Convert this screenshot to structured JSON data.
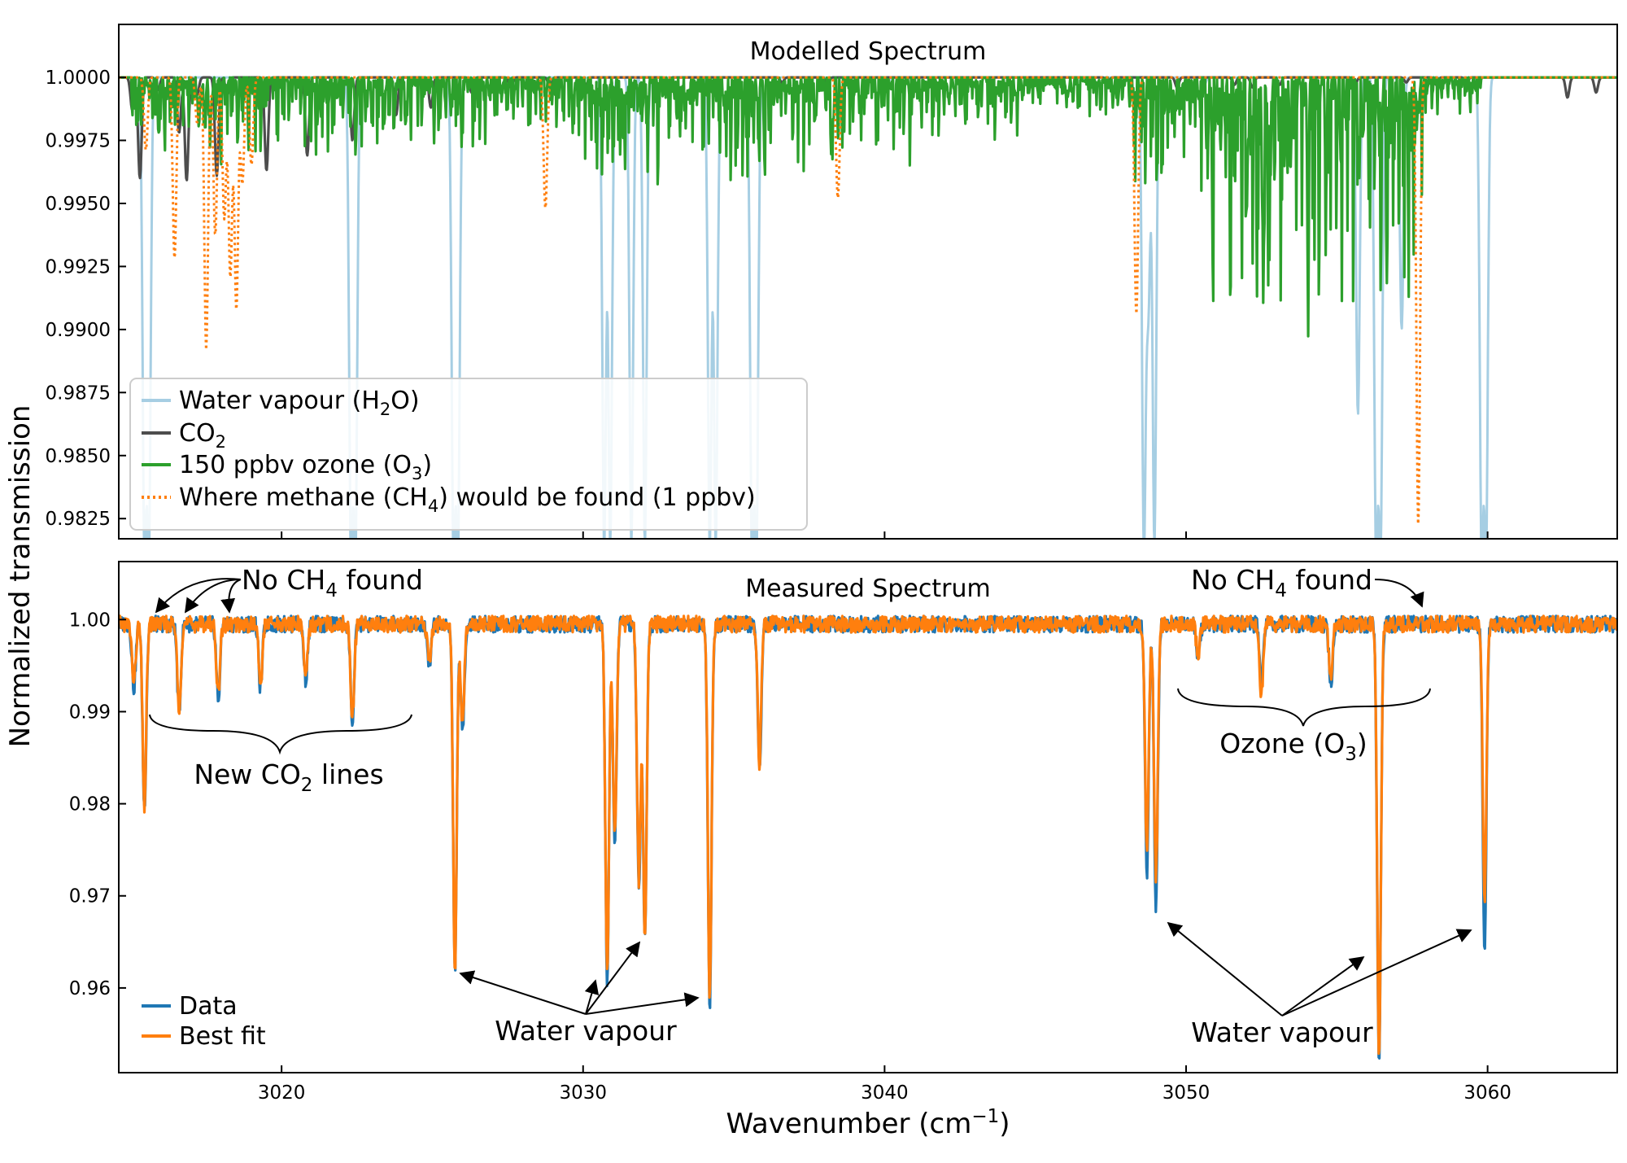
{
  "figure": {
    "ylabel": "Normalized transmission",
    "xlabel": "Wavenumber (cm⁻¹)",
    "xlabel_main": "Wavenumber (cm",
    "xlabel_sup": "−1",
    "xlabel_close": ")"
  },
  "top_panel": {
    "title": "Modelled Spectrum",
    "legend": [
      {
        "name": "Water vapour (H₂O)",
        "parts": [
          "Water vapour (H",
          "2",
          "O)"
        ],
        "color": "#a6cee3",
        "style": "solid"
      },
      {
        "name": "CO₂",
        "parts": [
          "CO",
          "2",
          ""
        ],
        "color": "#4d4d4d",
        "style": "solid"
      },
      {
        "name": "150 ppbv ozone (O₃)",
        "parts": [
          "150 ppbv ozone (O",
          "3",
          ")"
        ],
        "color": "#2ca02c",
        "style": "solid"
      },
      {
        "name": "Where methane (CH₄) would be found (1 ppbv)",
        "parts": [
          "Where methane (CH",
          "4",
          ") would be found (1 ppbv)"
        ],
        "color": "#ff7f0e",
        "style": "dotted"
      }
    ]
  },
  "bottom_panel": {
    "title": "Measured Spectrum",
    "legend": [
      {
        "name": "Data",
        "color": "#1f77b4"
      },
      {
        "name": "Best fit",
        "color": "#ff7f0e"
      }
    ],
    "annotations": {
      "no_ch4_left": {
        "parts": [
          "No CH",
          "4",
          " found"
        ]
      },
      "no_ch4_right": {
        "parts": [
          "No CH",
          "4",
          " found"
        ]
      },
      "new_co2": {
        "parts": [
          "New CO",
          "2",
          " lines"
        ]
      },
      "ozone": {
        "parts": [
          "Ozone (O",
          "3",
          ")"
        ]
      },
      "water_left": "Water vapour",
      "water_right": "Water vapour"
    }
  },
  "chart_data": [
    {
      "type": "line",
      "title": "Modelled Spectrum",
      "xlabel": "",
      "ylabel": "Normalized transmission",
      "xlim": [
        3014.6,
        3064.3
      ],
      "ylim": [
        0.9817,
        1.0021
      ],
      "yticks": [
        0.9825,
        0.985,
        0.9875,
        0.99,
        0.9925,
        0.995,
        0.9975,
        1.0
      ],
      "ytick_labels": [
        "0.9825",
        "0.9850",
        "0.9875",
        "0.9900",
        "0.9925",
        "0.9950",
        "0.9975",
        "1.0000"
      ],
      "xticks": [
        3020,
        3030,
        3040,
        3050,
        3060
      ],
      "grid": false,
      "legend_position": "lower-left",
      "series": [
        {
          "name": "Water vapour (H₂O)",
          "color": "#a6cee3",
          "baseline": 1.0,
          "absorption_lines": [
            {
              "x": 3015.45,
              "y": 0.9815
            },
            {
              "x": 3015.6,
              "y": 0.9815
            },
            {
              "x": 3022.3,
              "y": 0.9815
            },
            {
              "x": 3022.45,
              "y": 0.9815
            },
            {
              "x": 3025.7,
              "y": 0.9815
            },
            {
              "x": 3025.85,
              "y": 0.9815
            },
            {
              "x": 3030.7,
              "y": 0.9815
            },
            {
              "x": 3030.9,
              "y": 0.9815
            },
            {
              "x": 3031.6,
              "y": 0.9815
            },
            {
              "x": 3032.05,
              "y": 0.9815
            },
            {
              "x": 3034.2,
              "y": 0.9815
            },
            {
              "x": 3034.4,
              "y": 0.9815
            },
            {
              "x": 3035.6,
              "y": 0.9815
            },
            {
              "x": 3035.75,
              "y": 0.9815
            },
            {
              "x": 3048.6,
              "y": 0.9815
            },
            {
              "x": 3048.75,
              "y": 0.9911
            },
            {
              "x": 3048.95,
              "y": 0.9815
            },
            {
              "x": 3055.7,
              "y": 0.9866
            },
            {
              "x": 3056.3,
              "y": 0.9815
            },
            {
              "x": 3056.45,
              "y": 0.9815
            },
            {
              "x": 3057.15,
              "y": 0.99
            },
            {
              "x": 3059.8,
              "y": 0.9815
            },
            {
              "x": 3059.95,
              "y": 0.9815
            },
            {
              "x": 3040.1,
              "y": 0.9998
            },
            {
              "x": 3050.6,
              "y": 0.9997
            }
          ]
        },
        {
          "name": "CO₂",
          "color": "#4d4d4d",
          "baseline": 1.0,
          "absorption_lines": [
            {
              "x": 3015.05,
              "y": 0.9987
            },
            {
              "x": 3015.3,
              "y": 0.996
            },
            {
              "x": 3015.9,
              "y": 0.9995
            },
            {
              "x": 3016.6,
              "y": 0.9978
            },
            {
              "x": 3016.85,
              "y": 0.9959
            },
            {
              "x": 3017.2,
              "y": 0.9993
            },
            {
              "x": 3017.85,
              "y": 0.9961
            },
            {
              "x": 3018.2,
              "y": 0.9993
            },
            {
              "x": 3019.5,
              "y": 0.9963
            },
            {
              "x": 3020.85,
              "y": 0.9969
            },
            {
              "x": 3022.35,
              "y": 0.9975
            },
            {
              "x": 3023.8,
              "y": 0.9985
            },
            {
              "x": 3024.95,
              "y": 0.9988
            },
            {
              "x": 3026.3,
              "y": 0.9994
            },
            {
              "x": 3027.6,
              "y": 0.9996
            },
            {
              "x": 3028.9,
              "y": 0.9996
            },
            {
              "x": 3030.1,
              "y": 0.9997
            },
            {
              "x": 3032.8,
              "y": 0.9998
            },
            {
              "x": 3036.6,
              "y": 0.9998
            },
            {
              "x": 3038.1,
              "y": 0.9997
            },
            {
              "x": 3047.4,
              "y": 0.9998
            },
            {
              "x": 3049.7,
              "y": 0.9996
            },
            {
              "x": 3051.6,
              "y": 0.9997
            },
            {
              "x": 3052.2,
              "y": 0.9996
            },
            {
              "x": 3053.1,
              "y": 0.9997
            },
            {
              "x": 3055.6,
              "y": 0.9997
            },
            {
              "x": 3057.3,
              "y": 0.9998
            },
            {
              "x": 3058.3,
              "y": 0.9997
            },
            {
              "x": 3059.3,
              "y": 0.9998
            },
            {
              "x": 3062.65,
              "y": 0.9992
            },
            {
              "x": 3063.6,
              "y": 0.9994
            }
          ]
        },
        {
          "name": "150 ppbv ozone (O₃)",
          "color": "#2ca02c",
          "baseline": 1.0,
          "absorption_bands": [
            {
              "x_start": 3015.0,
              "x_end": 3019.2,
              "min_y": 0.9965
            },
            {
              "x_start": 3019.2,
              "x_end": 3022.0,
              "min_y": 0.9968
            },
            {
              "x_start": 3022.0,
              "x_end": 3027.5,
              "min_y": 0.9968
            },
            {
              "x_start": 3027.5,
              "x_end": 3029.6,
              "min_y": 0.9975
            },
            {
              "x_start": 3029.6,
              "x_end": 3036.3,
              "min_y": 0.9952
            },
            {
              "x_start": 3036.3,
              "x_end": 3041.0,
              "min_y": 0.9962
            },
            {
              "x_start": 3041.0,
              "x_end": 3044.5,
              "min_y": 0.9974
            },
            {
              "x_start": 3044.5,
              "x_end": 3048.2,
              "min_y": 0.9983
            },
            {
              "x_start": 3048.2,
              "x_end": 3050.6,
              "min_y": 0.9945
            },
            {
              "x_start": 3050.6,
              "x_end": 3055.0,
              "min_y": 0.9895
            },
            {
              "x_start": 3055.0,
              "x_end": 3057.9,
              "min_y": 0.9905
            },
            {
              "x_start": 3057.9,
              "x_end": 3059.8,
              "min_y": 0.9985
            }
          ]
        },
        {
          "name": "Where methane (CH₄) would be found (1 ppbv)",
          "color": "#ff7f0e",
          "style": "dotted",
          "baseline": 1.0,
          "absorption_lines": [
            {
              "x": 3015.5,
              "y": 0.9971
            },
            {
              "x": 3016.45,
              "y": 0.9928
            },
            {
              "x": 3017.2,
              "y": 0.9982
            },
            {
              "x": 3017.5,
              "y": 0.9892
            },
            {
              "x": 3017.8,
              "y": 0.9937
            },
            {
              "x": 3018.1,
              "y": 0.9944
            },
            {
              "x": 3018.3,
              "y": 0.9921
            },
            {
              "x": 3018.5,
              "y": 0.9908
            },
            {
              "x": 3018.7,
              "y": 0.9958
            },
            {
              "x": 3019.0,
              "y": 0.9965
            },
            {
              "x": 3028.75,
              "y": 0.9948
            },
            {
              "x": 3038.45,
              "y": 0.9952
            },
            {
              "x": 3048.35,
              "y": 0.9906
            },
            {
              "x": 3057.7,
              "y": 0.9822
            }
          ]
        }
      ]
    },
    {
      "type": "line",
      "title": "Measured Spectrum",
      "xlabel": "Wavenumber (cm⁻¹)",
      "ylabel": "Normalized transmission",
      "xlim": [
        3014.6,
        3064.3
      ],
      "ylim": [
        0.9508,
        1.0063
      ],
      "yticks": [
        0.96,
        0.97,
        0.98,
        0.99,
        1.0
      ],
      "ytick_labels": [
        "0.96",
        "0.97",
        "0.98",
        "0.99",
        "1.00"
      ],
      "xticks": [
        3020,
        3030,
        3040,
        3050,
        3060
      ],
      "xtick_labels": [
        "3020",
        "3030",
        "3040",
        "3050",
        "3060"
      ],
      "grid": false,
      "legend_position": "lower-left",
      "series": [
        {
          "name": "Data",
          "color": "#1f77b4",
          "baseline": 0.9995,
          "absorption_lines": [
            {
              "x": 3015.1,
              "y": 0.9925
            },
            {
              "x": 3015.45,
              "y": 0.9795
            },
            {
              "x": 3016.6,
              "y": 0.9898
            },
            {
              "x": 3017.9,
              "y": 0.9912
            },
            {
              "x": 3019.3,
              "y": 0.9925
            },
            {
              "x": 3020.8,
              "y": 0.9935
            },
            {
              "x": 3022.35,
              "y": 0.9888
            },
            {
              "x": 3024.9,
              "y": 0.9953
            },
            {
              "x": 3025.75,
              "y": 0.9618
            },
            {
              "x": 3026.0,
              "y": 0.9875
            },
            {
              "x": 3030.8,
              "y": 0.9603
            },
            {
              "x": 3031.05,
              "y": 0.9755
            },
            {
              "x": 3031.85,
              "y": 0.9705
            },
            {
              "x": 3032.05,
              "y": 0.9655
            },
            {
              "x": 3034.2,
              "y": 0.958
            },
            {
              "x": 3035.85,
              "y": 0.9838
            },
            {
              "x": 3048.7,
              "y": 0.9725
            },
            {
              "x": 3049.0,
              "y": 0.9685
            },
            {
              "x": 3050.4,
              "y": 0.9958
            },
            {
              "x": 3052.5,
              "y": 0.9925
            },
            {
              "x": 3054.8,
              "y": 0.993
            },
            {
              "x": 3056.4,
              "y": 0.951
            },
            {
              "x": 3059.9,
              "y": 0.9642
            }
          ]
        },
        {
          "name": "Best fit",
          "color": "#ff7f0e",
          "baseline": 0.9995,
          "absorption_lines": [
            {
              "x": 3015.1,
              "y": 0.993
            },
            {
              "x": 3015.45,
              "y": 0.9798
            },
            {
              "x": 3016.6,
              "y": 0.9905
            },
            {
              "x": 3017.9,
              "y": 0.9918
            },
            {
              "x": 3019.3,
              "y": 0.993
            },
            {
              "x": 3020.8,
              "y": 0.994
            },
            {
              "x": 3022.35,
              "y": 0.9895
            },
            {
              "x": 3024.9,
              "y": 0.9955
            },
            {
              "x": 3025.75,
              "y": 0.962
            },
            {
              "x": 3026.0,
              "y": 0.9885
            },
            {
              "x": 3030.8,
              "y": 0.9612
            },
            {
              "x": 3031.05,
              "y": 0.9765
            },
            {
              "x": 3031.85,
              "y": 0.9718
            },
            {
              "x": 3032.05,
              "y": 0.9652
            },
            {
              "x": 3034.2,
              "y": 0.959
            },
            {
              "x": 3035.85,
              "y": 0.9845
            },
            {
              "x": 3048.7,
              "y": 0.975
            },
            {
              "x": 3049.0,
              "y": 0.972
            },
            {
              "x": 3050.4,
              "y": 0.996
            },
            {
              "x": 3052.5,
              "y": 0.9918
            },
            {
              "x": 3054.8,
              "y": 0.9935
            },
            {
              "x": 3056.4,
              "y": 0.9525
            },
            {
              "x": 3059.9,
              "y": 0.9695
            }
          ]
        }
      ]
    }
  ]
}
